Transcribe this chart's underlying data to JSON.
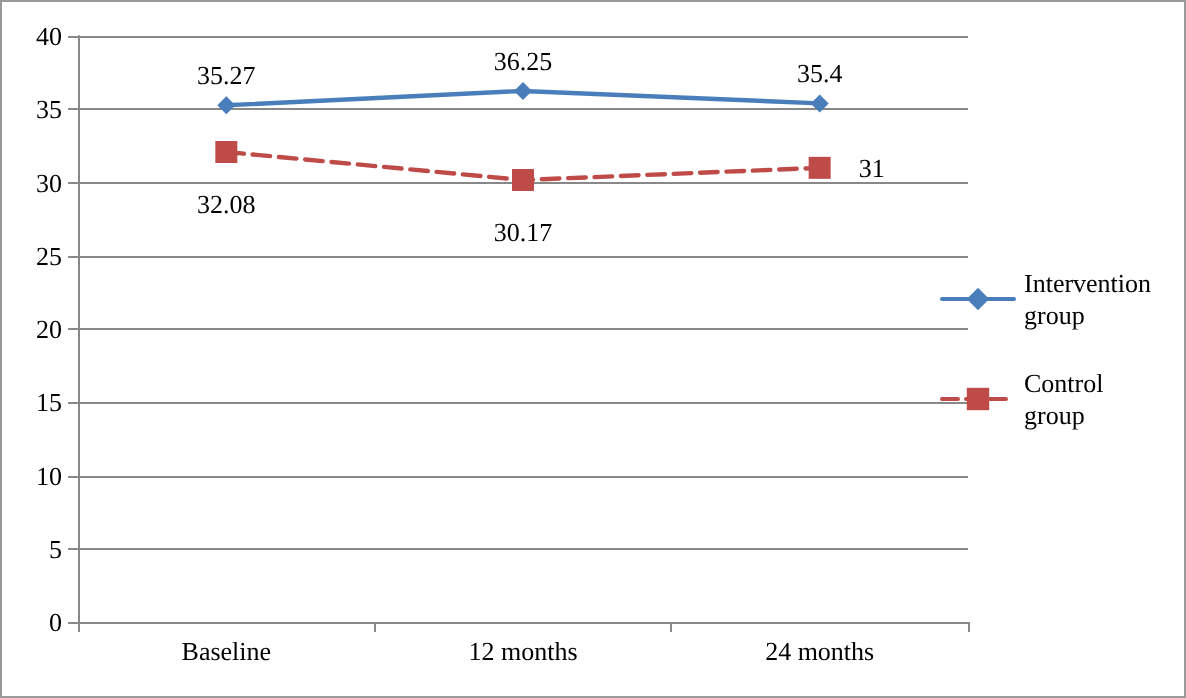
{
  "chart_data": {
    "type": "line",
    "categories": [
      "Baseline",
      "12 months",
      "24 months"
    ],
    "series": [
      {
        "name": "Intervention group",
        "color": "#4a7ebb",
        "values": [
          35.27,
          36.25,
          35.4
        ],
        "marker": "diamond",
        "line_style": "solid"
      },
      {
        "name": "Control group",
        "color": "#be4b48",
        "values": [
          32.08,
          30.17,
          31
        ],
        "marker": "square",
        "line_style": "dashed"
      }
    ],
    "ylim": [
      0,
      40
    ],
    "yticks": [
      0,
      5,
      10,
      15,
      20,
      25,
      30,
      35,
      40
    ],
    "grid": "y",
    "legend": "right",
    "data_labels": true
  }
}
